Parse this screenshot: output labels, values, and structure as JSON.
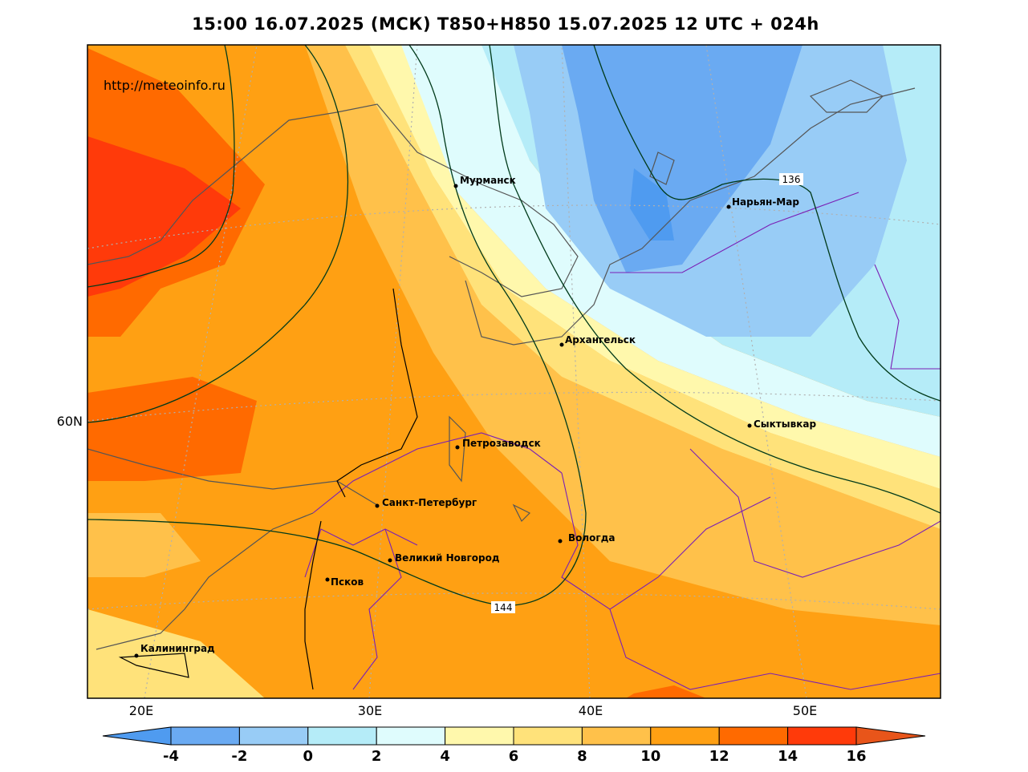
{
  "title": "15:00 16.07.2025 (МСК) T850+H850 15.07.2025 12 UTC + 024h",
  "source_url": "http://meteoinfo.ru",
  "axes": {
    "lon_labels": [
      "20E",
      "30E",
      "40E",
      "50E"
    ],
    "lat_labels": [
      "60N"
    ]
  },
  "cities": [
    {
      "name": "Мурманск"
    },
    {
      "name": "Нарьян-Мар"
    },
    {
      "name": "Архангельск"
    },
    {
      "name": "Сыктывкар"
    },
    {
      "name": "Петрозаводск"
    },
    {
      "name": "Санкт-Петербург"
    },
    {
      "name": "Вологда"
    },
    {
      "name": "Великий Новгород"
    },
    {
      "name": "Псков"
    },
    {
      "name": "Калининград"
    }
  ],
  "contour_labels": [
    "136",
    "144"
  ],
  "colorbar": {
    "ticks": [
      "-4",
      "-2",
      "0",
      "2",
      "4",
      "6",
      "8",
      "10",
      "12",
      "14",
      "16"
    ],
    "colors": [
      "#4f9bf0",
      "#6aaaf2",
      "#98ccf6",
      "#b5ecf8",
      "#dffcfd",
      "#fff8ac",
      "#ffe27a",
      "#ffc14a",
      "#ffa013",
      "#ff6a00",
      "#ff3a0a",
      "#e8551a"
    ]
  }
}
